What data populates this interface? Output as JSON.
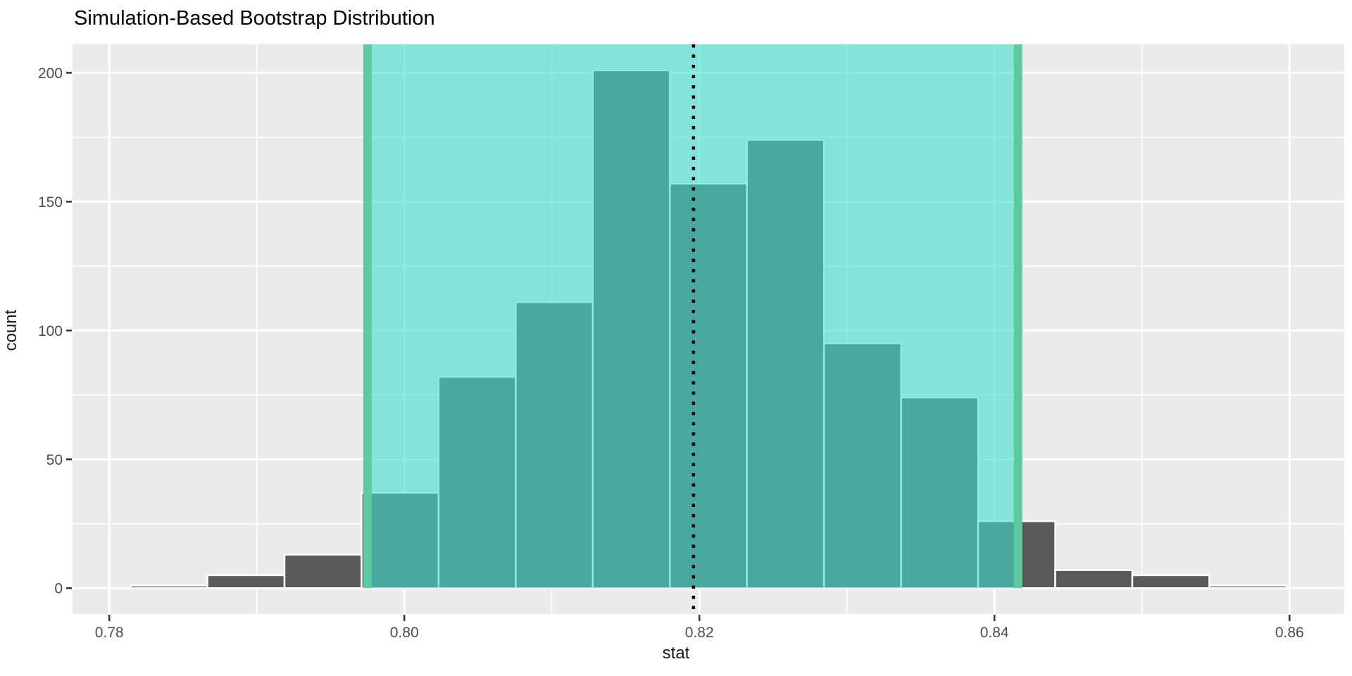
{
  "chart_data": {
    "type": "histogram",
    "title": "Simulation-Based Bootstrap Distribution",
    "xlabel": "stat",
    "ylabel": "count",
    "x_ticks": [
      0.78,
      0.8,
      0.82,
      0.84,
      0.86
    ],
    "x_tick_labels": [
      "0.78",
      "0.80",
      "0.82",
      "0.84",
      "0.86"
    ],
    "x_minor_gridlines": [
      0.79,
      0.81,
      0.83,
      0.85
    ],
    "y_ticks": [
      0,
      50,
      100,
      150,
      200
    ],
    "y_tick_labels": [
      "0",
      "50",
      "100",
      "150",
      "200"
    ],
    "y_minor_gridlines": [
      25,
      75,
      125,
      175
    ],
    "x_domain": [
      0.77751,
      0.86371
    ],
    "y_domain": [
      -10.05,
      211.05
    ],
    "bins": {
      "start": 0.78143,
      "width": 0.005224,
      "counts": [
        1,
        5,
        13,
        37,
        82,
        111,
        201,
        157,
        174,
        95,
        74,
        26,
        7,
        5,
        1
      ]
    },
    "confidence_interval": {
      "lower": 0.7975,
      "upper": 0.8416
    },
    "observed_statistic": 0.8196,
    "legend": "none",
    "grid": "on",
    "colors": {
      "panel_background": "#EBEBEB",
      "gridline": "#FFFFFF",
      "bar_fill": "#595959",
      "bar_stroke": "#FFFFFF",
      "ci_shade_rgba": "rgba(64,224,208,0.6)",
      "ci_line": "#5FC9A2",
      "observed_line": "#000000",
      "tick_mark": "#333333",
      "tick_label": "#4D4D4D",
      "axis_title": "#1A1A1A",
      "title": "#000000"
    }
  }
}
